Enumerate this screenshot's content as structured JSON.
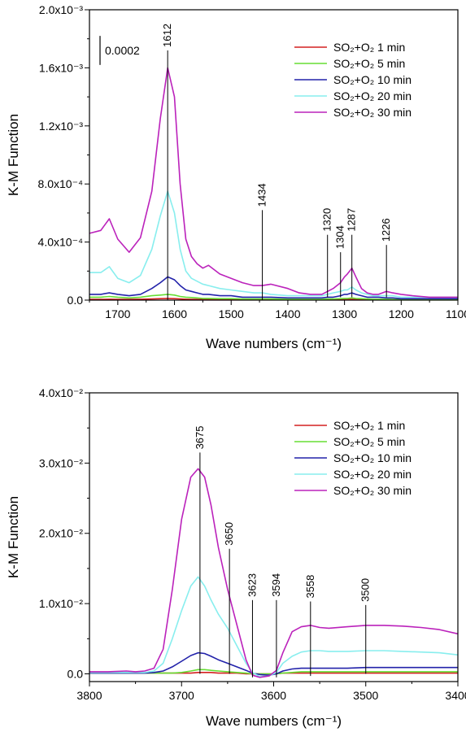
{
  "chart_data": [
    {
      "type": "line",
      "xlabel": "Wave numbers (cm⁻¹)",
      "ylabel": "K-M Function",
      "xlim": [
        1750,
        1100
      ],
      "ylim": [
        0,
        0.002
      ],
      "x_ticks": [
        1700,
        1600,
        1500,
        1400,
        1300,
        1200,
        1100
      ],
      "x_tick_labels": [
        "1700",
        "1600",
        "1500",
        "1400",
        "1300",
        "1200",
        "1100"
      ],
      "y_ticks": [
        0,
        0.0004,
        0.0008,
        0.0012,
        0.0016,
        0.002
      ],
      "y_tick_labels": [
        "0.0",
        "4.0x10⁻⁴",
        "8.0x10⁻⁴",
        "1.2x10⁻³",
        "1.6x10⁻³",
        "2.0x10⁻³"
      ],
      "grid": false,
      "legend_position": "top-right",
      "scale_bar": {
        "label": "0.0002",
        "value": 0.0002
      },
      "annotations": [
        {
          "label": "1612",
          "x": 1612,
          "y_bottom": 0.0,
          "y_top": 0.00172
        },
        {
          "label": "1434",
          "x": 1445,
          "y_bottom": 0.0,
          "y_top": 0.00062
        },
        {
          "label": "1320",
          "x": 1330,
          "y_bottom": 2e-05,
          "y_top": 0.00045
        },
        {
          "label": "1304",
          "x": 1307,
          "y_bottom": 2e-05,
          "y_top": 0.00033
        },
        {
          "label": "1287",
          "x": 1287,
          "y_bottom": 2e-05,
          "y_top": 0.00045
        },
        {
          "label": "1226",
          "x": 1226,
          "y_bottom": 2e-05,
          "y_top": 0.00038
        }
      ],
      "x": [
        1750,
        1730,
        1715,
        1700,
        1680,
        1660,
        1640,
        1625,
        1612,
        1600,
        1590,
        1580,
        1570,
        1560,
        1550,
        1540,
        1520,
        1500,
        1480,
        1460,
        1445,
        1430,
        1400,
        1380,
        1360,
        1340,
        1330,
        1320,
        1307,
        1300,
        1295,
        1287,
        1280,
        1270,
        1260,
        1250,
        1240,
        1226,
        1215,
        1200,
        1180,
        1150,
        1100
      ],
      "series": [
        {
          "name": "SO₂+O₂ 1 min",
          "color": "#d42020",
          "values": [
            5e-06,
            5e-06,
            6e-06,
            5e-06,
            5e-06,
            6e-06,
            8e-06,
            1e-05,
            1.2e-05,
            1e-05,
            8e-06,
            6e-06,
            5e-06,
            5e-06,
            4e-06,
            4e-06,
            4e-06,
            4e-06,
            3e-06,
            3e-06,
            3e-06,
            3e-06,
            3e-06,
            3e-06,
            3e-06,
            3e-06,
            3e-06,
            3e-06,
            4e-06,
            5e-06,
            5e-06,
            6e-06,
            5e-06,
            4e-06,
            3e-06,
            3e-06,
            3e-06,
            3e-06,
            3e-06,
            2e-06,
            2e-06,
            2e-06,
            2e-06
          ]
        },
        {
          "name": "SO₂+O₂ 5 min",
          "color": "#66dd33",
          "values": [
            2e-05,
            2e-05,
            2.5e-05,
            2e-05,
            1.5e-05,
            2e-05,
            3e-05,
            3.5e-05,
            4e-05,
            3.5e-05,
            2.5e-05,
            2e-05,
            1.8e-05,
            1.5e-05,
            1.2e-05,
            1.2e-05,
            1e-05,
            1e-05,
            8e-06,
            8e-06,
            8e-06,
            8e-06,
            6e-06,
            6e-06,
            6e-06,
            6e-06,
            8e-06,
            8e-06,
            1e-05,
            1.2e-05,
            1.2e-05,
            1.5e-05,
            1.2e-05,
            1e-05,
            8e-06,
            6e-06,
            6e-06,
            6e-06,
            5e-06,
            4e-06,
            4e-06,
            3e-06,
            3e-06
          ]
        },
        {
          "name": "SO₂+O₂ 10 min",
          "color": "#2222aa",
          "values": [
            4e-05,
            4e-05,
            5e-05,
            4e-05,
            3e-05,
            4e-05,
            8e-05,
            0.00012,
            0.00016,
            0.00014,
            0.0001,
            7e-05,
            6e-05,
            5e-05,
            4e-05,
            4e-05,
            3e-05,
            3e-05,
            2e-05,
            2e-05,
            2e-05,
            2e-05,
            1.5e-05,
            1.5e-05,
            1.5e-05,
            1.5e-05,
            2e-05,
            2e-05,
            3e-05,
            4e-05,
            4e-05,
            5e-05,
            4e-05,
            3e-05,
            2e-05,
            2e-05,
            2e-05,
            1.5e-05,
            1.5e-05,
            1e-05,
            1e-05,
            1e-05,
            1e-05
          ]
        },
        {
          "name": "SO₂+O₂ 20 min",
          "color": "#88eeee",
          "values": [
            0.00019,
            0.00019,
            0.00023,
            0.00015,
            0.00012,
            0.00017,
            0.00035,
            0.00058,
            0.00075,
            0.0006,
            0.00035,
            0.0002,
            0.00015,
            0.00013,
            0.00011,
            0.0001,
            8e-05,
            7e-05,
            6e-05,
            5e-05,
            5e-05,
            4e-05,
            3e-05,
            3e-05,
            3e-05,
            3e-05,
            4e-05,
            5e-05,
            6e-05,
            7e-05,
            7e-05,
            9e-05,
            7e-05,
            5e-05,
            4e-05,
            3e-05,
            3e-05,
            3e-05,
            3e-05,
            2e-05,
            2e-05,
            2e-05,
            2e-05
          ]
        },
        {
          "name": "SO₂+O₂ 30 min",
          "color": "#bb22bb",
          "values": [
            0.00046,
            0.00048,
            0.00056,
            0.00042,
            0.00033,
            0.00043,
            0.00075,
            0.00125,
            0.0016,
            0.0014,
            0.0008,
            0.00042,
            0.0003,
            0.00025,
            0.00022,
            0.00024,
            0.00018,
            0.00015,
            0.00012,
            0.0001,
            0.0001,
            0.00011,
            8e-05,
            5e-05,
            4e-05,
            4e-05,
            6e-05,
            8e-05,
            0.00012,
            0.00016,
            0.00018,
            0.00022,
            0.00016,
            8e-05,
            5e-05,
            4e-05,
            4e-05,
            6e-05,
            5e-05,
            4e-05,
            3e-05,
            2e-05,
            2e-05
          ]
        }
      ]
    },
    {
      "type": "line",
      "xlabel": "Wave numbers (cm⁻¹)",
      "ylabel": "K-M Function",
      "xlim": [
        3800,
        3400
      ],
      "ylim": [
        -0.0011,
        0.04
      ],
      "x_ticks": [
        3800,
        3700,
        3600,
        3500,
        3400
      ],
      "x_tick_labels": [
        "3800",
        "3700",
        "3600",
        "3500",
        "3400"
      ],
      "y_ticks": [
        0,
        0.01,
        0.02,
        0.03,
        0.04
      ],
      "y_tick_labels": [
        "0.0",
        "1.0x10⁻²",
        "2.0x10⁻²",
        "3.0x10⁻²",
        "4.0x10⁻²"
      ],
      "grid": false,
      "legend_position": "top-right",
      "annotations": [
        {
          "label": "3675",
          "x": 3680,
          "y_bottom": 0.0,
          "y_top": 0.0315
        },
        {
          "label": "3650",
          "x": 3648,
          "y_bottom": 0.0,
          "y_top": 0.0178
        },
        {
          "label": "3623",
          "x": 3623,
          "y_bottom": -0.0005,
          "y_top": 0.0105
        },
        {
          "label": "3594",
          "x": 3597,
          "y_bottom": -0.0005,
          "y_top": 0.0105
        },
        {
          "label": "3558",
          "x": 3560,
          "y_bottom": -0.0003,
          "y_top": 0.0103
        },
        {
          "label": "3500",
          "x": 3500,
          "y_bottom": 0.0,
          "y_top": 0.0098
        }
      ],
      "x": [
        3800,
        3780,
        3760,
        3750,
        3740,
        3730,
        3720,
        3710,
        3700,
        3690,
        3682,
        3675,
        3668,
        3660,
        3650,
        3640,
        3630,
        3623,
        3615,
        3605,
        3597,
        3590,
        3580,
        3570,
        3560,
        3550,
        3540,
        3520,
        3500,
        3480,
        3460,
        3440,
        3420,
        3400
      ],
      "series": [
        {
          "name": "SO₂+O₂ 1 min",
          "color": "#d42020",
          "values": [
            0.0001,
            0.0001,
            0.0001,
            0.0001,
            0.0001,
            0.0001,
            0.0001,
            0.0001,
            0.0001,
            0.0001,
            0.0002,
            0.0002,
            0.0002,
            0.0001,
            0.0001,
            0.0001,
            0.0,
            0.0,
            0.0,
            0.0,
            0.0,
            0.0001,
            0.0001,
            0.0001,
            0.0001,
            0.0001,
            0.0001,
            0.0001,
            0.0001,
            0.0001,
            0.0001,
            0.0001,
            0.0001,
            0.0001
          ]
        },
        {
          "name": "SO₂+O₂ 5 min",
          "color": "#66dd33",
          "values": [
            0.0001,
            0.0001,
            0.0001,
            0.0001,
            0.0001,
            0.0001,
            0.0001,
            0.0001,
            0.0002,
            0.0004,
            0.0006,
            0.0006,
            0.0005,
            0.0004,
            0.0003,
            0.0002,
            0.0001,
            0.0,
            0.0,
            0.0,
            0.0,
            0.0001,
            0.0002,
            0.0003,
            0.0003,
            0.0003,
            0.0003,
            0.0003,
            0.0003,
            0.0003,
            0.0003,
            0.0003,
            0.0003,
            0.0003
          ]
        },
        {
          "name": "SO₂+O₂ 10 min",
          "color": "#2222aa",
          "values": [
            0.0001,
            0.0001,
            0.0001,
            0.0001,
            0.0001,
            0.0002,
            0.0004,
            0.001,
            0.0018,
            0.0026,
            0.003,
            0.0029,
            0.0025,
            0.002,
            0.0015,
            0.001,
            0.0005,
            0.0001,
            -0.0001,
            -0.0002,
            0.0,
            0.0004,
            0.0007,
            0.0008,
            0.0008,
            0.0008,
            0.0008,
            0.0008,
            0.0009,
            0.0009,
            0.0009,
            0.0009,
            0.0009,
            0.0009
          ]
        },
        {
          "name": "SO₂+O₂ 20 min",
          "color": "#88eeee",
          "values": [
            0.0002,
            0.0002,
            0.0002,
            0.0002,
            0.0002,
            0.0004,
            0.0015,
            0.005,
            0.009,
            0.0125,
            0.0138,
            0.0125,
            0.0105,
            0.0085,
            0.0065,
            0.004,
            0.0015,
            0.0002,
            -0.0004,
            -0.0003,
            0.0002,
            0.0015,
            0.0025,
            0.0031,
            0.0033,
            0.0033,
            0.0032,
            0.0032,
            0.0033,
            0.0033,
            0.0032,
            0.0031,
            0.003,
            0.0027
          ]
        },
        {
          "name": "SO₂+O₂ 30 min",
          "color": "#bb22bb",
          "values": [
            0.0003,
            0.0003,
            0.0004,
            0.0003,
            0.0004,
            0.0008,
            0.0035,
            0.012,
            0.022,
            0.028,
            0.0292,
            0.028,
            0.024,
            0.018,
            0.012,
            0.007,
            0.002,
            -0.0002,
            -0.0005,
            -0.0003,
            0.0005,
            0.003,
            0.006,
            0.0067,
            0.0069,
            0.0066,
            0.0065,
            0.0067,
            0.0069,
            0.0069,
            0.0068,
            0.0066,
            0.0063,
            0.0057
          ]
        }
      ]
    }
  ]
}
